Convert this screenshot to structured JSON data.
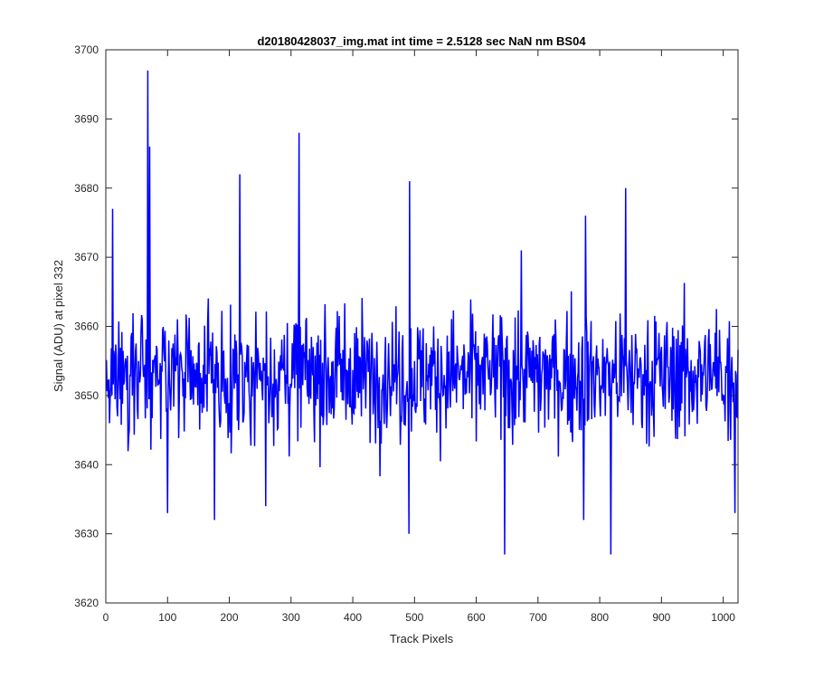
{
  "chart_data": {
    "type": "line",
    "title": "d20180428037_img.mat int time = 2.5128 sec  NaN nm BS04",
    "xlabel": "Track Pixels",
    "ylabel": "Signal (ADU) at pixel 332",
    "xlim": [
      0,
      1024
    ],
    "ylim": [
      3620,
      3700
    ],
    "x_ticks": [
      0,
      100,
      200,
      300,
      400,
      500,
      600,
      700,
      800,
      900,
      1000
    ],
    "y_ticks": [
      3620,
      3630,
      3640,
      3650,
      3660,
      3670,
      3680,
      3690,
      3700
    ],
    "grid": false,
    "line_color": "#0000ff",
    "n_points": 1024,
    "baseline": 3653,
    "peaks": [
      {
        "x": 10,
        "y": 3677
      },
      {
        "x": 67,
        "y": 3697
      },
      {
        "x": 70,
        "y": 3686
      },
      {
        "x": 216,
        "y": 3682
      },
      {
        "x": 312,
        "y": 3688
      },
      {
        "x": 491,
        "y": 3681
      },
      {
        "x": 672,
        "y": 3671
      },
      {
        "x": 776,
        "y": 3676
      },
      {
        "x": 841,
        "y": 3680
      },
      {
        "x": 99,
        "y": 3633
      },
      {
        "x": 175,
        "y": 3632
      },
      {
        "x": 258,
        "y": 3634
      },
      {
        "x": 490,
        "y": 3630
      },
      {
        "x": 645,
        "y": 3627
      },
      {
        "x": 773,
        "y": 3632
      },
      {
        "x": 817,
        "y": 3627
      },
      {
        "x": 1018,
        "y": 3633
      }
    ]
  }
}
